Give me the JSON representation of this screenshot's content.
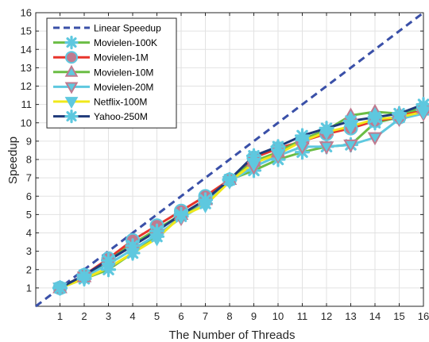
{
  "chart_data": {
    "type": "line",
    "xlabel": "The Number of Threads",
    "ylabel": "Speedup",
    "xlim": [
      0,
      16
    ],
    "ylim": [
      0,
      16
    ],
    "xticks": [
      1,
      2,
      3,
      4,
      5,
      6,
      7,
      8,
      9,
      10,
      11,
      12,
      13,
      14,
      15,
      16
    ],
    "yticks": [
      1,
      2,
      3,
      4,
      5,
      6,
      7,
      8,
      9,
      10,
      11,
      12,
      13,
      14,
      15,
      16
    ],
    "grid": true,
    "legend_position": "top-left",
    "series": [
      {
        "name": "Linear Speedup",
        "color": "#3a50a8",
        "line": "dashed",
        "marker": "none",
        "x": [
          0,
          16
        ],
        "y": [
          0,
          16
        ]
      },
      {
        "name": "Movielen-100K",
        "color": "#6bbd45",
        "line": "solid",
        "marker": "asterisk",
        "marker_color": "#5ec8df",
        "x": [
          1,
          2,
          3,
          4,
          5,
          6,
          7,
          8,
          9,
          10,
          11,
          12,
          13,
          14,
          15,
          16
        ],
        "y": [
          1.0,
          1.5,
          2.0,
          2.9,
          3.8,
          4.9,
          5.6,
          6.9,
          7.4,
          8.0,
          8.4,
          8.7,
          8.8,
          10.0,
          10.3,
          10.7
        ]
      },
      {
        "name": "Movielen-1M",
        "color": "#e8342b",
        "line": "solid",
        "marker": "circle",
        "marker_color": "#7fa4b4",
        "x": [
          1,
          2,
          3,
          4,
          5,
          6,
          7,
          8,
          9,
          10,
          11,
          12,
          13,
          14,
          15,
          16
        ],
        "y": [
          1.0,
          1.7,
          2.6,
          3.6,
          4.4,
          5.2,
          6.0,
          6.9,
          8.1,
          8.6,
          9.0,
          9.4,
          9.7,
          10.1,
          10.3,
          10.8
        ]
      },
      {
        "name": "Movielen-10M",
        "color": "#6bbd45",
        "line": "solid",
        "marker": "triangle-up",
        "marker_color": "#c07a8f",
        "x": [
          1,
          2,
          3,
          4,
          5,
          6,
          7,
          8,
          9,
          10,
          11,
          12,
          13,
          14,
          15,
          16
        ],
        "y": [
          1.0,
          1.6,
          2.5,
          3.4,
          4.2,
          5.0,
          5.8,
          6.9,
          7.9,
          8.4,
          9.1,
          9.6,
          10.4,
          10.6,
          10.5,
          10.8
        ]
      },
      {
        "name": "Movielen-20M",
        "color": "#5ec8df",
        "line": "solid",
        "marker": "triangle-down",
        "marker_color": "#c07a8f",
        "x": [
          1,
          2,
          3,
          4,
          5,
          6,
          7,
          8,
          9,
          10,
          11,
          12,
          13,
          14,
          15,
          16
        ],
        "y": [
          1.0,
          1.6,
          2.3,
          3.1,
          3.9,
          4.8,
          5.6,
          6.8,
          7.6,
          8.2,
          8.7,
          8.7,
          8.8,
          9.2,
          10.2,
          10.5
        ]
      },
      {
        "name": "Netflix-100M",
        "color": "#f0e81a",
        "line": "solid",
        "marker": "triangle-down",
        "marker_color": "#5ec8df",
        "x": [
          1,
          2,
          3,
          4,
          5,
          6,
          7,
          8,
          9,
          10,
          11,
          12,
          13,
          14,
          15,
          16
        ],
        "y": [
          1.0,
          1.5,
          2.1,
          2.9,
          3.7,
          4.9,
          5.5,
          6.8,
          7.8,
          8.3,
          9.0,
          9.5,
          9.8,
          10.2,
          10.3,
          10.6
        ]
      },
      {
        "name": "Yahoo-250M",
        "color": "#1f3a7a",
        "line": "solid",
        "marker": "asterisk",
        "marker_color": "#5ec8df",
        "x": [
          1,
          2,
          3,
          4,
          5,
          6,
          7,
          8,
          9,
          10,
          11,
          12,
          13,
          14,
          15,
          16
        ],
        "y": [
          1.0,
          1.7,
          2.5,
          3.3,
          4.1,
          5.0,
          5.8,
          6.9,
          8.2,
          8.7,
          9.3,
          9.7,
          10.1,
          10.3,
          10.5,
          11.0
        ]
      }
    ]
  }
}
